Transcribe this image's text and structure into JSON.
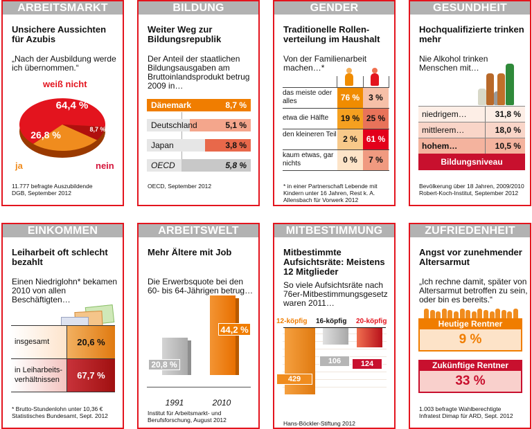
{
  "cards": [
    {
      "header": "ARBEITSMARKT",
      "title": "Unsichere Aussichten für Azubis",
      "subtitle": "„Nach der Ausbildung werde ich übernommen.“",
      "source": "11.777 befragte Auszubildende\nDGB, September 2012"
    },
    {
      "header": "BILDUNG",
      "title": "Weiter Weg zur Bildungsrepublik",
      "subtitle": "Der Anteil der staatlichen Bildungsausgaben am Bruttoinlandsprodukt betrug 2009 in…",
      "source": "OECD, September 2012"
    },
    {
      "header": "GENDER",
      "title": "Traditionelle Rollen-verteilung im Haushalt",
      "subtitle": "Von der Familienarbeit machen…*",
      "source": "* in einer Partnerschaft Lebende mit Kindern unter 16 Jahren, Rest k. A.\nAllensbach für Vorwerk 2012"
    },
    {
      "header": "GESUNDHEIT",
      "title": "Hochqualifizierte trinken mehr",
      "subtitle": "Nie Alkohol trinken Menschen mit…",
      "source": "Bevölkerung über 18 Jahren, 2009/2010\nRobert-Koch-Institut, September 2012"
    },
    {
      "header": "EINKOMMEN",
      "title": "Leiharbeit oft schlecht bezahlt",
      "subtitle": "Einen Niedriglohn* bekamen 2010 von allen Beschäftigten…",
      "source": "* Brutto-Stundenlohn unter 10,36 €\nStatistisches Bundesamt, Sept. 2012"
    },
    {
      "header": "ARBEITSWELT",
      "title": "Mehr Ältere mit Job",
      "subtitle": "Die Erwerbsquote bei den 60- bis 64-Jährigen betrug…",
      "source": "Institut für Arbeitsmarkt- und Berufsforschung, August 2012"
    },
    {
      "header": "MITBESTIMMUNG",
      "title": "Mitbestimmte Aufsichtsräte: Meistens 12 Mitglieder",
      "subtitle": "So viele Aufsichtsräte nach 76er-Mitbestimmungsgesetz waren 2011…",
      "source": "Hans-Böckler-Stiftung 2012"
    },
    {
      "header": "ZUFRIEDENHEIT",
      "title": "Angst vor zunehmender Altersarmut",
      "subtitle": "„Ich rechne damit, später von Altersarmut betroffen zu sein, oder bin es bereits.“",
      "source": "1.003 befragte Wahlberechtigte\nInfratest Dimap für ARD, Sept. 2012"
    }
  ],
  "colors": {
    "border": "#e3141e",
    "header": "#b2b2b2",
    "orange": "#f07d00",
    "red": "#e3001b",
    "darkred": "#c8102e",
    "gray": "#bdbdbd"
  },
  "chart_data": [
    {
      "type": "pie",
      "slices": [
        {
          "label": "weiß nicht",
          "value": 64.4,
          "text": "64,4 %",
          "color": "#e3141e"
        },
        {
          "label": "ja",
          "value": 26.8,
          "text": "26,8 %",
          "color": "#f08c1e"
        },
        {
          "label": "nein",
          "value": 8.7,
          "text": "8,7 %",
          "color": "#b0100e"
        }
      ]
    },
    {
      "type": "bar",
      "orientation": "horizontal",
      "categories": [
        "Dänemark",
        "Deutschland",
        "Japan",
        "OECD"
      ],
      "values": [
        8.7,
        5.1,
        3.8,
        5.8
      ],
      "labels": [
        "8,7 %",
        "5,1 %",
        "3,8 %",
        "5,8 %"
      ],
      "colors": [
        "#f07d00",
        "#f4a68c",
        "#e8684a",
        "#c8c8c8"
      ]
    },
    {
      "type": "heatmap",
      "columns": [
        "Frauen",
        "Männer"
      ],
      "rows": [
        "das meiste oder alles",
        "etwa die Hälfte",
        "den kleineren Teil",
        "kaum etwas, gar nichts"
      ],
      "values": [
        [
          76,
          3
        ],
        [
          19,
          25
        ],
        [
          2,
          61
        ],
        [
          0,
          7
        ]
      ],
      "labels": [
        [
          "76 %",
          "3 %"
        ],
        [
          "19 %",
          "25 %"
        ],
        [
          "2 %",
          "61 %"
        ],
        [
          "0 %",
          "7 %"
        ]
      ],
      "colors": [
        [
          "#f08c00",
          "#f6c0a8"
        ],
        [
          "#f5a020",
          "#e8735a"
        ],
        [
          "#f8c98a",
          "#e3001b"
        ],
        [
          "#fde4c8",
          "#f09a80"
        ]
      ]
    },
    {
      "type": "table",
      "categories": [
        "niedrigem…",
        "mittlerem…",
        "hohem…"
      ],
      "values": [
        31.8,
        18.0,
        10.5
      ],
      "labels": [
        "31,8 %",
        "18,0 %",
        "10,5 %"
      ],
      "footer": "Bildungsniveau"
    },
    {
      "type": "table",
      "categories": [
        "insgesamt",
        "in Leiharbeits-verhältnissen"
      ],
      "values": [
        20.6,
        67.7
      ],
      "labels": [
        "20,6 %",
        "67,7 %"
      ]
    },
    {
      "type": "bar",
      "categories": [
        "1991",
        "2010"
      ],
      "values": [
        20.8,
        44.2
      ],
      "labels": [
        "20,8 %",
        "44,2 %"
      ],
      "colors": [
        "#bdbdbd",
        "#f07d00"
      ]
    },
    {
      "type": "bar",
      "categories": [
        "12-köpfig",
        "16-köpfig",
        "20-köpfig"
      ],
      "values": [
        429,
        106,
        124
      ],
      "labels": [
        "429",
        "106",
        "124"
      ],
      "colors": [
        "#f08c1e",
        "#bdbdbd",
        "#d9262e"
      ]
    },
    {
      "type": "table",
      "categories": [
        "Heutige Rentner",
        "Zukünftige Rentner"
      ],
      "values": [
        9,
        33
      ],
      "labels": [
        "9 %",
        "33 %"
      ]
    }
  ]
}
